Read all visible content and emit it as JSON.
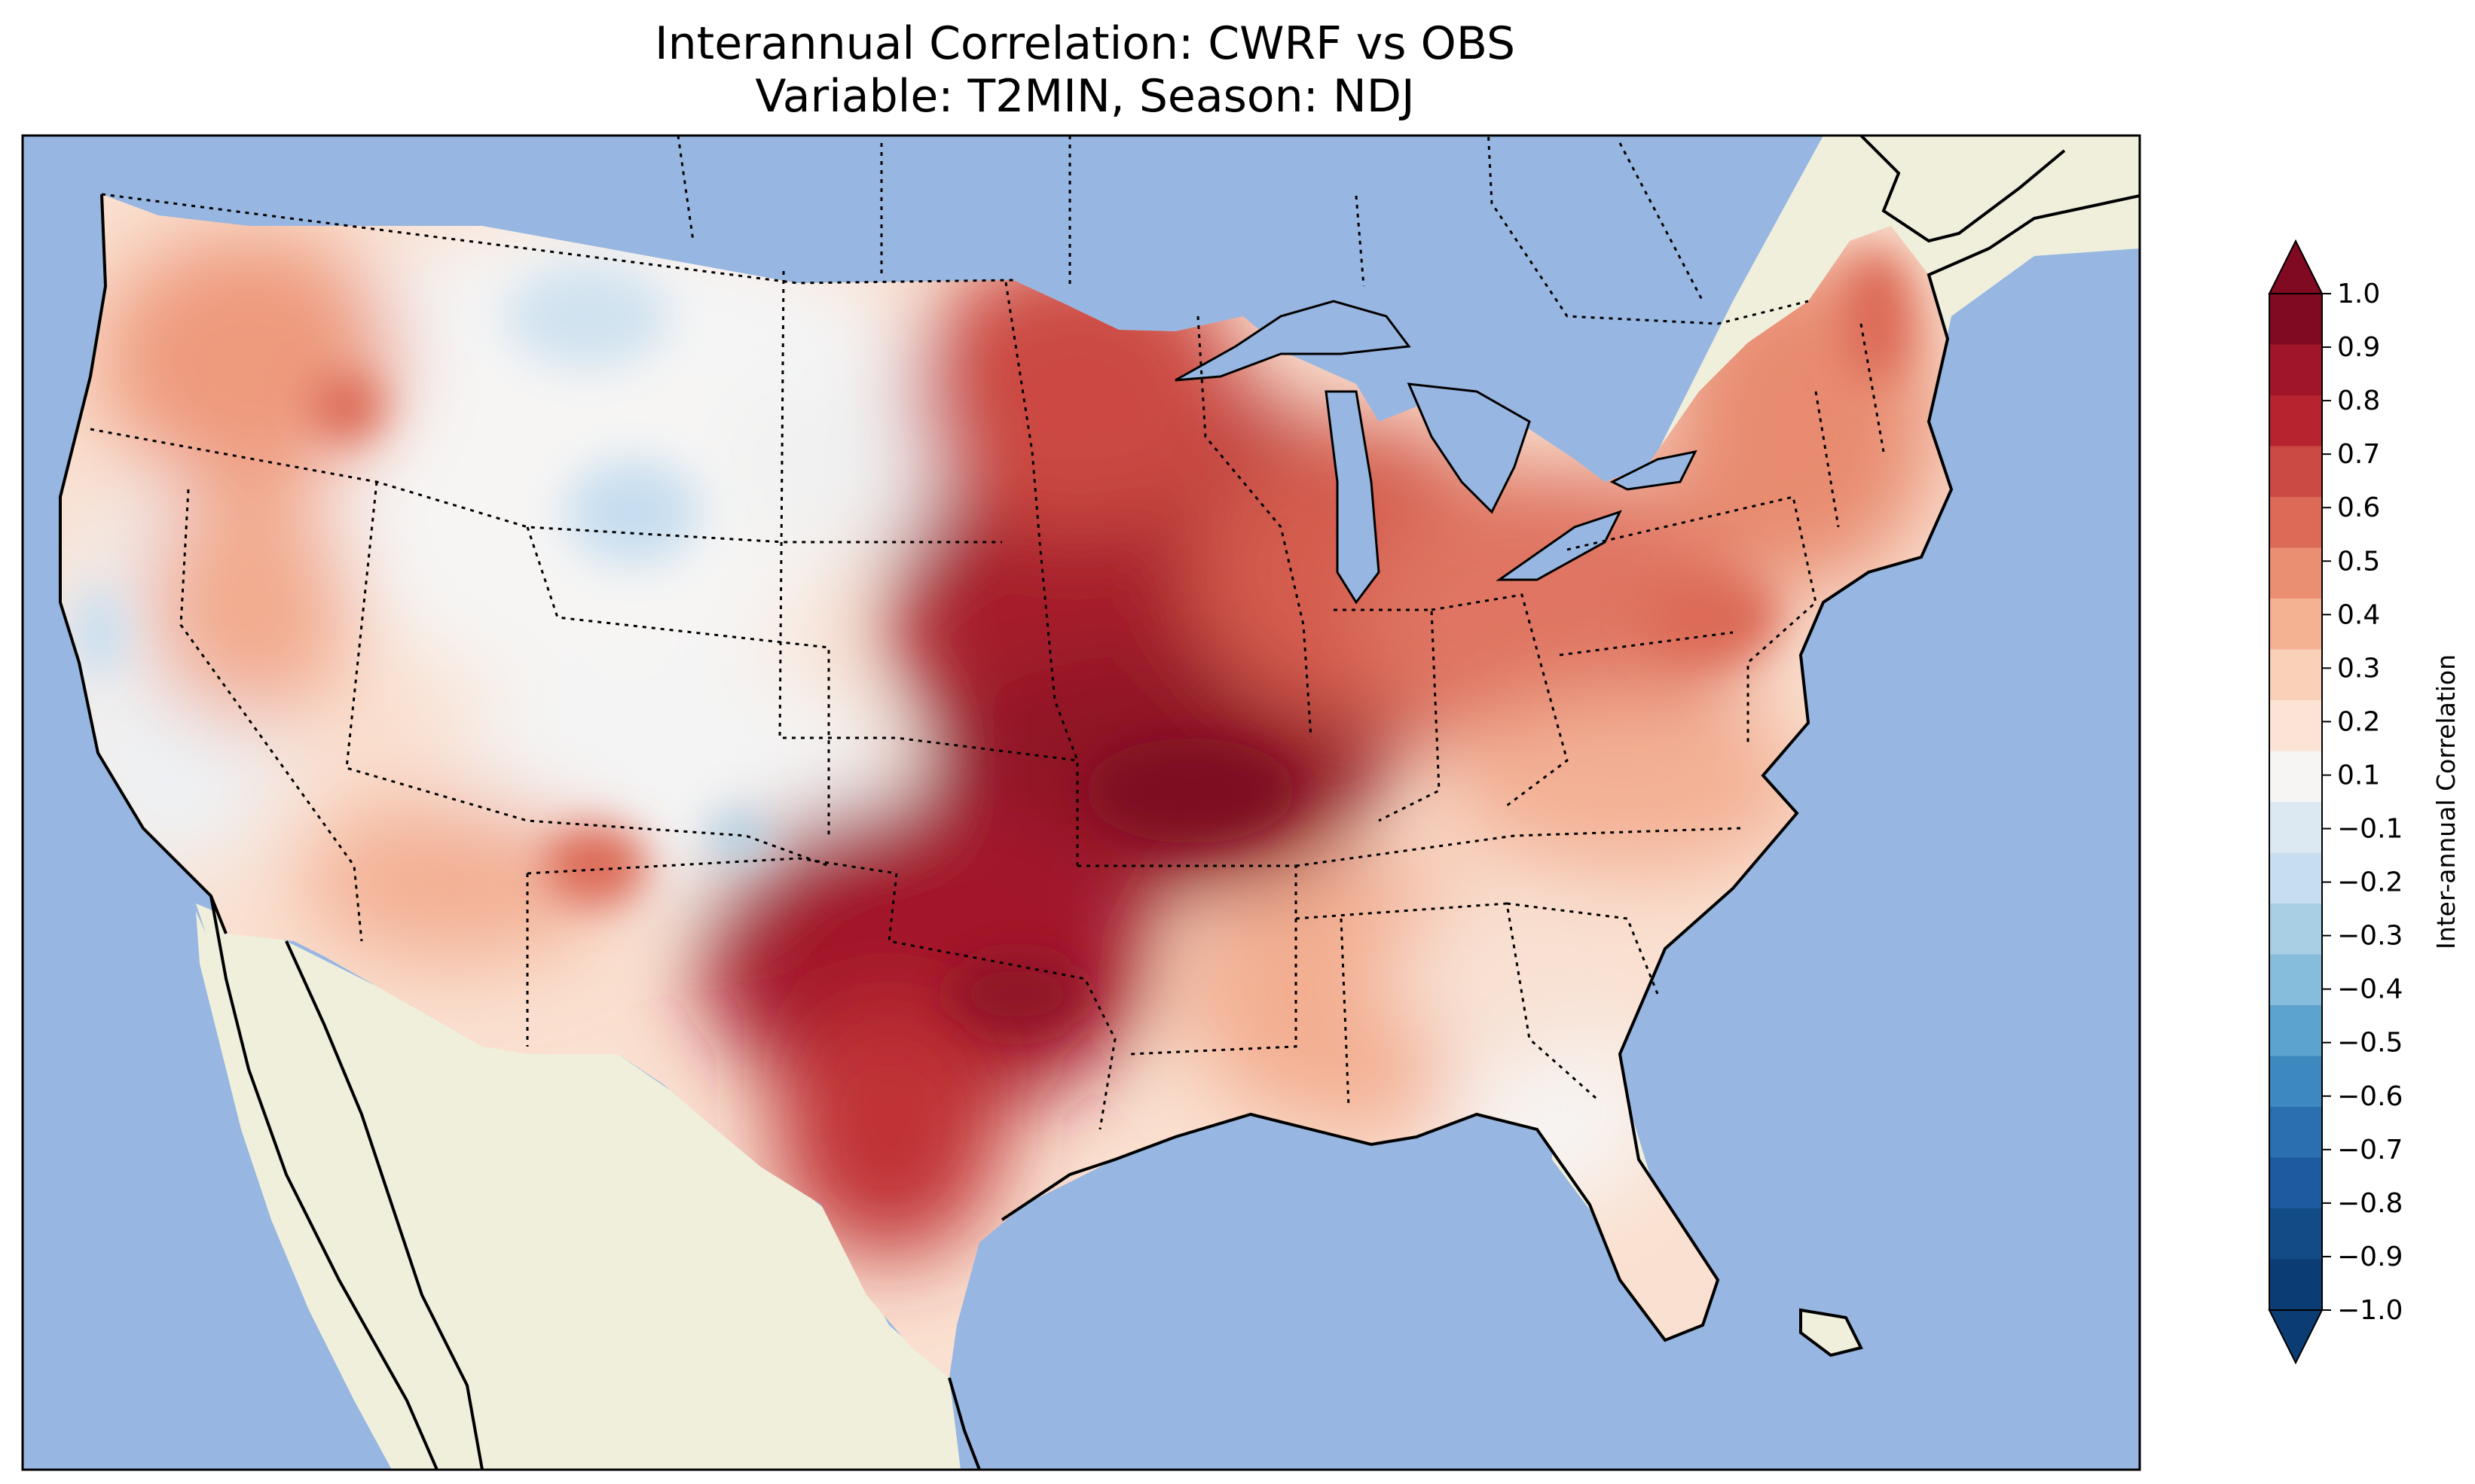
{
  "title_line_1": "Interannual Correlation: CWRF vs OBS",
  "title_line_2": "Variable: T2MIN, Season: NDJ",
  "colorbar": {
    "label": "Inter-annual Correlation",
    "ticks": [
      "1.0",
      "0.9",
      "0.8",
      "0.7",
      "0.6",
      "0.5",
      "0.4",
      "0.3",
      "0.2",
      "0.1",
      "−0.1",
      "−0.2",
      "−0.3",
      "−0.4",
      "−0.5",
      "−0.6",
      "−0.7",
      "−0.8",
      "−0.9",
      "−1.0"
    ],
    "tick_values": [
      1.0,
      0.9,
      0.8,
      0.7,
      0.6,
      0.5,
      0.4,
      0.3,
      0.2,
      0.1,
      -0.1,
      -0.2,
      -0.3,
      -0.4,
      -0.5,
      -0.6,
      -0.7,
      -0.8,
      -0.9,
      -1.0
    ],
    "band_colors_top_to_bottom": [
      "#7f0a21",
      "#a01527",
      "#b7242f",
      "#cb4a43",
      "#dc6a56",
      "#eb8f72",
      "#f5b293",
      "#fad0b8",
      "#fbe4d6",
      "#f6f5f4",
      "#dce9f2",
      "#c7def0",
      "#a9cfe5",
      "#86bcdc",
      "#5da3cf",
      "#3e88c0",
      "#2c6fb1",
      "#1d5a9f",
      "#134b87",
      "#0b3c73"
    ],
    "extend": "both",
    "colormap": "RdBu_r"
  },
  "map": {
    "ocean_color": "#97b6e1",
    "land_color": "#efefdc",
    "region": "Contiguous United States"
  }
}
